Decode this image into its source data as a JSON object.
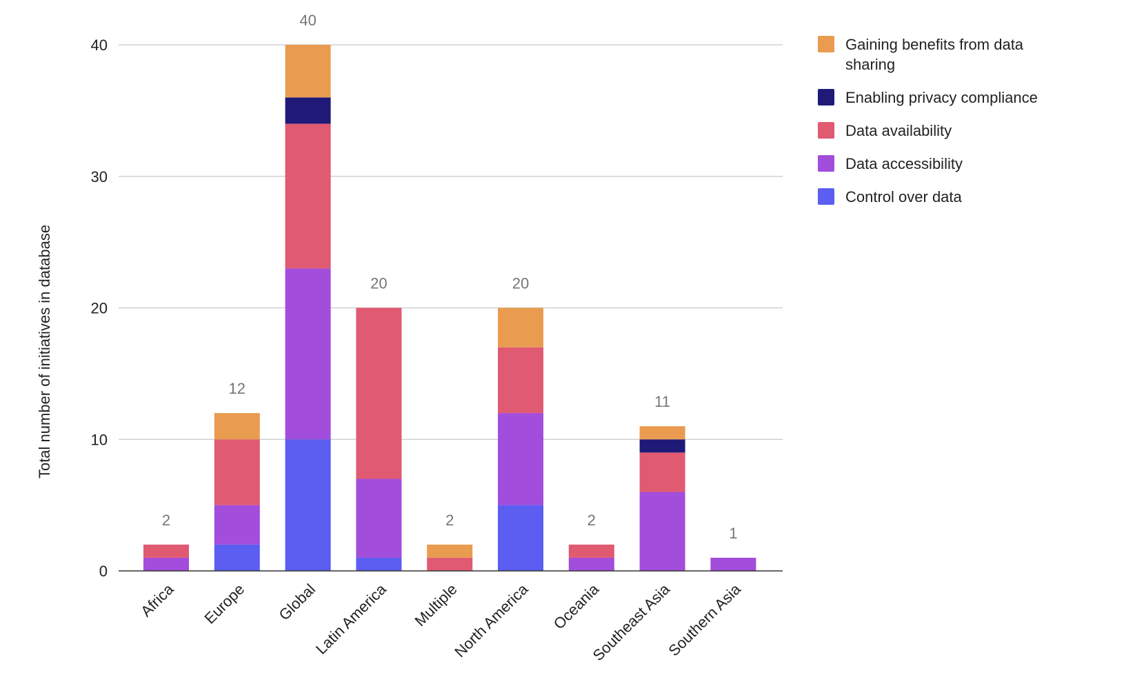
{
  "chart_data": {
    "type": "bar",
    "stacked": true,
    "title": "",
    "xlabel": "",
    "ylabel": "Total number of initiatives in database",
    "ylim": [
      0,
      40
    ],
    "yticks": [
      0,
      10,
      20,
      30,
      40
    ],
    "grid": true,
    "legend_position": "right",
    "categories": [
      "Africa",
      "Europe",
      "Global",
      "Latin America",
      "Multiple",
      "North America",
      "Oceania",
      "Southeast Asia",
      "Southern Asia"
    ],
    "series": [
      {
        "name": "Control over data",
        "color": "#5b5ef0",
        "values": [
          0,
          2,
          10,
          1,
          0,
          5,
          0,
          0,
          0
        ]
      },
      {
        "name": "Data accessibility",
        "color": "#a24ddb",
        "values": [
          1,
          3,
          13,
          6,
          0,
          7,
          1,
          6,
          1
        ]
      },
      {
        "name": "Data availability",
        "color": "#e05a72",
        "values": [
          1,
          5,
          11,
          13,
          1,
          5,
          1,
          3,
          0
        ]
      },
      {
        "name": "Enabling privacy compliance",
        "color": "#1f1a78",
        "values": [
          0,
          0,
          2,
          0,
          0,
          0,
          0,
          1,
          0
        ]
      },
      {
        "name": "Gaining benefits from data sharing",
        "color": "#e99c50",
        "values": [
          0,
          2,
          4,
          0,
          1,
          3,
          0,
          1,
          0
        ]
      }
    ],
    "totals": [
      2,
      12,
      40,
      20,
      2,
      20,
      2,
      11,
      1
    ],
    "legend_order": [
      {
        "label_lines": [
          "Gaining benefits from data",
          "sharing"
        ],
        "color": "#e99c50"
      },
      {
        "label_lines": [
          "Enabling privacy compliance"
        ],
        "color": "#1f1a78"
      },
      {
        "label_lines": [
          "Data availability"
        ],
        "color": "#e05a72"
      },
      {
        "label_lines": [
          "Data accessibility"
        ],
        "color": "#a24ddb"
      },
      {
        "label_lines": [
          "Control over data"
        ],
        "color": "#5b5ef0"
      }
    ]
  }
}
